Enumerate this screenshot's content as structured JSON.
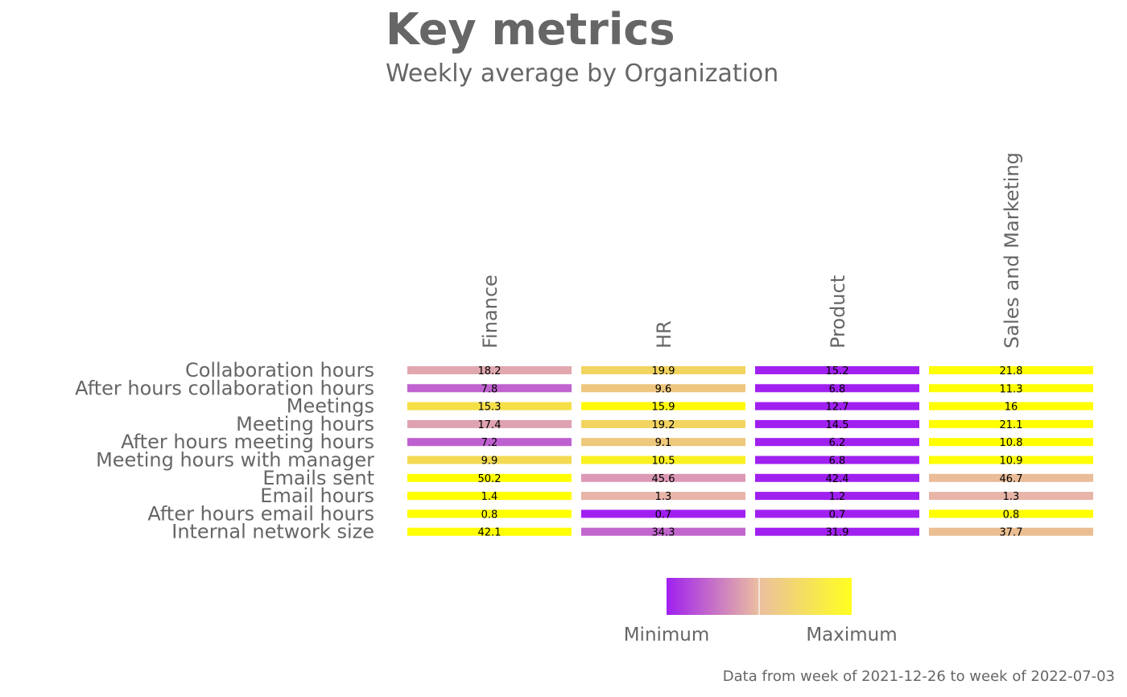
{
  "chart_data": {
    "type": "heatmap",
    "title": "Key metrics",
    "subtitle": "Weekly average by Organization",
    "caption": "Data from week of 2021-12-26 to week of 2022-07-03",
    "columns": [
      "Finance",
      "HR",
      "Product",
      "Sales and Marketing"
    ],
    "rows": [
      "Collaboration hours",
      "After hours collaboration hours",
      "Meetings",
      "Meeting hours",
      "After hours meeting hours",
      "Meeting hours with manager",
      "Emails sent",
      "Email hours",
      "After hours email hours",
      "Internal network size"
    ],
    "values": [
      [
        18.2,
        19.9,
        15.2,
        21.8
      ],
      [
        7.8,
        9.6,
        6.8,
        11.3
      ],
      [
        15.3,
        15.9,
        12.7,
        16
      ],
      [
        17.4,
        19.2,
        14.5,
        21.1
      ],
      [
        7.2,
        9.1,
        6.2,
        10.8
      ],
      [
        9.9,
        10.5,
        6.8,
        10.9
      ],
      [
        50.2,
        45.6,
        42.4,
        46.7
      ],
      [
        1.4,
        1.3,
        1.2,
        1.3
      ],
      [
        0.8,
        0.7,
        0.7,
        0.8
      ],
      [
        42.1,
        34.3,
        31.9,
        37.7
      ]
    ],
    "color_scale": {
      "low": "#A020F0",
      "mid": "#E8B4A8",
      "high": "#FFFF00",
      "scaling": "per row (minimum to maximum)"
    },
    "legend": {
      "labels": [
        "Minimum",
        "Maximum"
      ],
      "placement": "bottom"
    }
  }
}
